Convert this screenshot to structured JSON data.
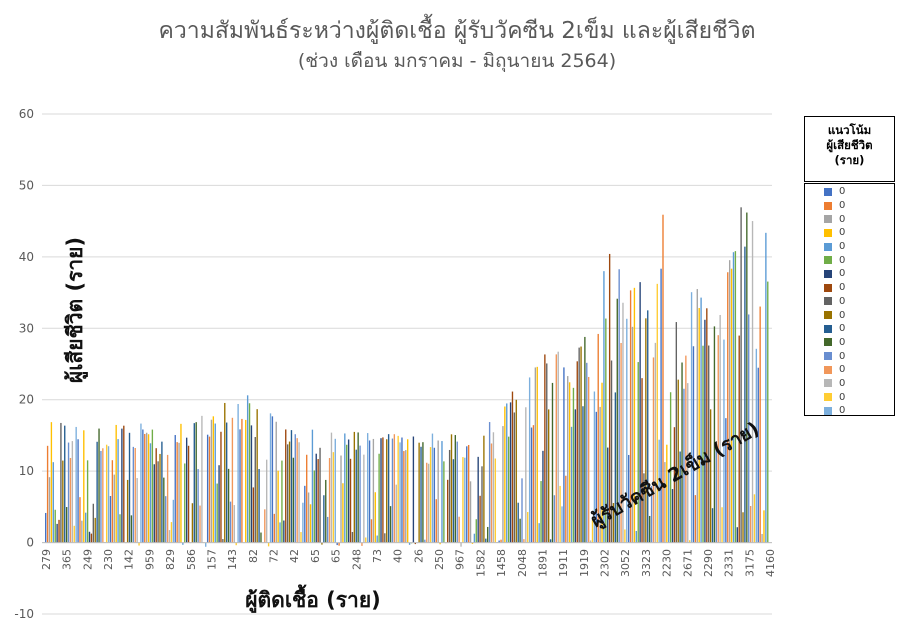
{
  "chart_data": {
    "type": "bar",
    "title": "ความสัมพันธ์ระหว่างผู้ติดเชื้อ ผู้รับวัคซีน 2เข็ม และผู้เสียชีวิต",
    "subtitle": "(ช่วง เดือน มกราคม - มิถุนายน 2564)",
    "xlabel": "ผู้ติดเชื้อ (ราย)",
    "ylabel": "ผู้เสียชีวิต (ราย)",
    "annotation": "ผู้รับวัคซีน 2เข็ม (ราย)",
    "ylim": [
      -10,
      60
    ],
    "yticks": [
      -10,
      0,
      10,
      20,
      30,
      40,
      50,
      60
    ],
    "xtick_labels": [
      "279",
      "365",
      "249",
      "230",
      "142",
      "959",
      "829",
      "586",
      "157",
      "143",
      "82",
      "72",
      "42",
      "65",
      "65",
      "248",
      "73",
      "40",
      "26",
      "250",
      "967",
      "1582",
      "1458",
      "2048",
      "1891",
      "1911",
      "1919",
      "2302",
      "3052",
      "3323",
      "2230",
      "2671",
      "2290",
      "2331",
      "3175",
      "4160"
    ],
    "envelope_x": [
      0,
      5,
      10,
      16,
      20,
      26,
      30,
      33,
      35,
      40,
      45,
      50,
      52,
      55,
      58,
      60,
      64,
      67,
      70,
      73,
      75,
      78,
      80,
      83,
      85,
      88,
      90,
      92,
      95,
      96,
      100
    ],
    "envelope_y": [
      17,
      17,
      17,
      16.5,
      17.5,
      21,
      20.5,
      17,
      16,
      15.5,
      15.5,
      15.5,
      16,
      15.5,
      15,
      16,
      21,
      24,
      28,
      28,
      30,
      44,
      36,
      38,
      50,
      37,
      36,
      34,
      41,
      48,
      46
    ],
    "grid": true,
    "legend_position": "right",
    "legend": {
      "title": [
        "แนวโน้ม",
        "ผู้เสียชีวิต",
        "(ราย)"
      ],
      "entries": [
        {
          "label": "0",
          "color": "#4472C4"
        },
        {
          "label": "0",
          "color": "#ED7D31"
        },
        {
          "label": "0",
          "color": "#A5A5A5"
        },
        {
          "label": "0",
          "color": "#FFC000"
        },
        {
          "label": "0",
          "color": "#5B9BD5"
        },
        {
          "label": "0",
          "color": "#70AD47"
        },
        {
          "label": "0",
          "color": "#264478"
        },
        {
          "label": "0",
          "color": "#9E480E"
        },
        {
          "label": "0",
          "color": "#636363"
        },
        {
          "label": "0",
          "color": "#997300"
        },
        {
          "label": "0",
          "color": "#255E91"
        },
        {
          "label": "0",
          "color": "#43682B"
        },
        {
          "label": "0",
          "color": "#698ED0"
        },
        {
          "label": "0",
          "color": "#F1975A"
        },
        {
          "label": "0",
          "color": "#B7B7B7"
        },
        {
          "label": "0",
          "color": "#FFCD33"
        },
        {
          "label": "0",
          "color": "#7CAFDD"
        }
      ]
    }
  }
}
